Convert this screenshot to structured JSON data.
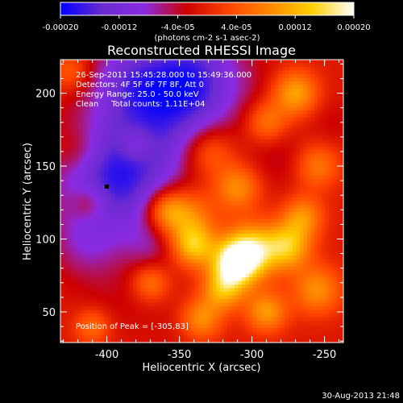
{
  "chart_data": {
    "type": "heatmap",
    "title": "Reconstructed RHESSI Image",
    "xlabel": "Heliocentric X (arcsec)",
    "ylabel": "Heliocentric Y (arcsec)",
    "xlim": [
      -432,
      -237
    ],
    "ylim": [
      29,
      223
    ],
    "x_ticks": [
      -400,
      -350,
      -300,
      -250
    ],
    "x_tick_labels": [
      "-400",
      "-350",
      "-300",
      "-250"
    ],
    "y_ticks": [
      50,
      100,
      150,
      200
    ],
    "y_tick_labels": [
      "50",
      "100",
      "150",
      "200"
    ],
    "colorbar": {
      "min": -0.0002,
      "max": 0.0002,
      "ticks": [
        -0.0002,
        -0.00012,
        -4e-05,
        4e-05,
        0.00012,
        0.0002
      ],
      "tick_labels": [
        "-0.00020",
        "-0.00012",
        "-4.0e-05",
        "4.0e-05",
        "0.00012",
        "0.00020"
      ],
      "label": "(photons cm-2 s-1 asec-2)",
      "colors": [
        "#0000ff",
        "#6a2bd0",
        "#8a2be2",
        "#cc0000",
        "#ff4400",
        "#ff8800",
        "#ffd000",
        "#ffffff"
      ]
    },
    "annotations": [
      "26-Sep-2011 15:45:28.000 to 15:49:36.000",
      "Detectors: 4F 5F 6F 7F 8F, Att 0",
      "Energy Range: 25.0 - 50.0 keV",
      "Clean     Total counts: 1.11E+04",
      "Position of Peak = [-305,83]"
    ],
    "peak": {
      "x": -305,
      "y": 83
    },
    "marker": {
      "x": -400,
      "y": 136
    },
    "blobs": [
      {
        "x": -395,
        "y": 140,
        "r": 28,
        "v": -0.00018
      },
      {
        "x": -360,
        "y": 190,
        "r": 30,
        "v": -0.00014
      },
      {
        "x": -340,
        "y": 212,
        "r": 22,
        "v": -0.00012
      },
      {
        "x": -385,
        "y": 210,
        "r": 18,
        "v": -8e-05
      },
      {
        "x": -415,
        "y": 95,
        "r": 16,
        "v": -6e-05
      },
      {
        "x": -370,
        "y": 95,
        "r": 12,
        "v": -5e-05
      },
      {
        "x": -395,
        "y": 60,
        "r": 18,
        "v": -3e-05
      },
      {
        "x": -355,
        "y": 40,
        "r": 16,
        "v": -2e-05
      },
      {
        "x": -280,
        "y": 155,
        "r": 14,
        "v": -4e-05
      },
      {
        "x": -300,
        "y": 210,
        "r": 12,
        "v": -2e-05
      },
      {
        "x": -245,
        "y": 180,
        "r": 12,
        "v": -3e-05
      },
      {
        "x": -420,
        "y": 160,
        "r": 12,
        "v": 4e-05
      },
      {
        "x": -425,
        "y": 215,
        "r": 10,
        "v": 6e-05
      },
      {
        "x": -412,
        "y": 125,
        "r": 9,
        "v": 6e-05
      },
      {
        "x": -330,
        "y": 160,
        "r": 13,
        "v": 9e-05
      },
      {
        "x": -345,
        "y": 115,
        "r": 14,
        "v": 0.00011
      },
      {
        "x": -360,
        "y": 120,
        "r": 10,
        "v": 0.0001
      },
      {
        "x": -310,
        "y": 135,
        "r": 11,
        "v": 0.0001
      },
      {
        "x": -290,
        "y": 180,
        "r": 10,
        "v": 8e-05
      },
      {
        "x": -270,
        "y": 200,
        "r": 11,
        "v": 0.00012
      },
      {
        "x": -255,
        "y": 150,
        "r": 11,
        "v": 8e-05
      },
      {
        "x": -300,
        "y": 92,
        "r": 13,
        "v": 0.00017
      },
      {
        "x": -312,
        "y": 83,
        "r": 11,
        "v": 0.0002
      },
      {
        "x": -275,
        "y": 95,
        "r": 11,
        "v": 0.00014
      },
      {
        "x": -340,
        "y": 95,
        "r": 10,
        "v": 0.00013
      },
      {
        "x": -320,
        "y": 65,
        "r": 10,
        "v": 0.00012
      },
      {
        "x": -290,
        "y": 50,
        "r": 10,
        "v": 0.00011
      },
      {
        "x": -335,
        "y": 45,
        "r": 10,
        "v": 0.0001
      },
      {
        "x": -255,
        "y": 65,
        "r": 12,
        "v": 0.0001
      },
      {
        "x": -265,
        "y": 115,
        "r": 10,
        "v": 0.0001
      },
      {
        "x": -370,
        "y": 70,
        "r": 9,
        "v": 8e-05
      },
      {
        "x": -410,
        "y": 40,
        "r": 9,
        "v": 7e-05
      },
      {
        "x": -380,
        "y": 165,
        "r": 8,
        "v": 6e-05
      }
    ]
  },
  "footer": {
    "timestamp": "30-Aug-2013 21:48"
  }
}
